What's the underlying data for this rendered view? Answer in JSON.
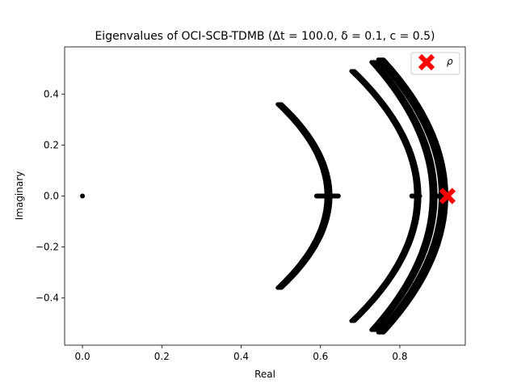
{
  "chart_data": {
    "type": "scatter",
    "title": "Eigenvalues of OCI-SCB-TDMB (Δt = 100.0, δ = 0.1, c = 0.5)",
    "xlabel": "Real",
    "ylabel": "Imaginary",
    "xlim": [
      -0.045,
      0.965
    ],
    "ylim": [
      -0.585,
      0.585
    ],
    "xticks": [
      0.0,
      0.2,
      0.4,
      0.6,
      0.8
    ],
    "xtick_labels": [
      "0.0",
      "0.2",
      "0.4",
      "0.6",
      "0.8"
    ],
    "yticks": [
      -0.4,
      -0.2,
      0.0,
      0.2,
      0.4
    ],
    "ytick_labels": [
      "−0.4",
      "−0.2",
      "0.0",
      "0.2",
      "0.4"
    ],
    "grid": false,
    "series": [
      {
        "name": "eigenvalues",
        "color": "#000000",
        "marker": "dot",
        "arcs": [
          {
            "center_x": 0.62,
            "imag_max": 0.36,
            "curvature": 0.95,
            "thickness": 0.01
          },
          {
            "center_x": 0.845,
            "imag_max": 0.49,
            "curvature": 0.68,
            "thickness": 0.008
          },
          {
            "center_x": 0.885,
            "imag_max": 0.525,
            "curvature": 0.55,
            "thickness": 0.01
          },
          {
            "center_x": 0.91,
            "imag_max": 0.535,
            "curvature": 0.55,
            "thickness": 0.014
          }
        ],
        "real_axis_segments": [
          {
            "from": 0.59,
            "to": 0.645
          },
          {
            "from": 0.83,
            "to": 0.85
          },
          {
            "from": 0.885,
            "to": 0.905
          }
        ],
        "isolated_points": [
          {
            "x": 0.0,
            "y": 0.0
          }
        ]
      }
    ],
    "highlight": {
      "name": "ρ",
      "x": 0.92,
      "y": 0.0,
      "color": "#ff0000",
      "marker": "X"
    },
    "legend": {
      "position": "top-right",
      "entries": [
        {
          "label": "ρ",
          "color": "#ff0000",
          "marker": "X"
        }
      ]
    }
  }
}
